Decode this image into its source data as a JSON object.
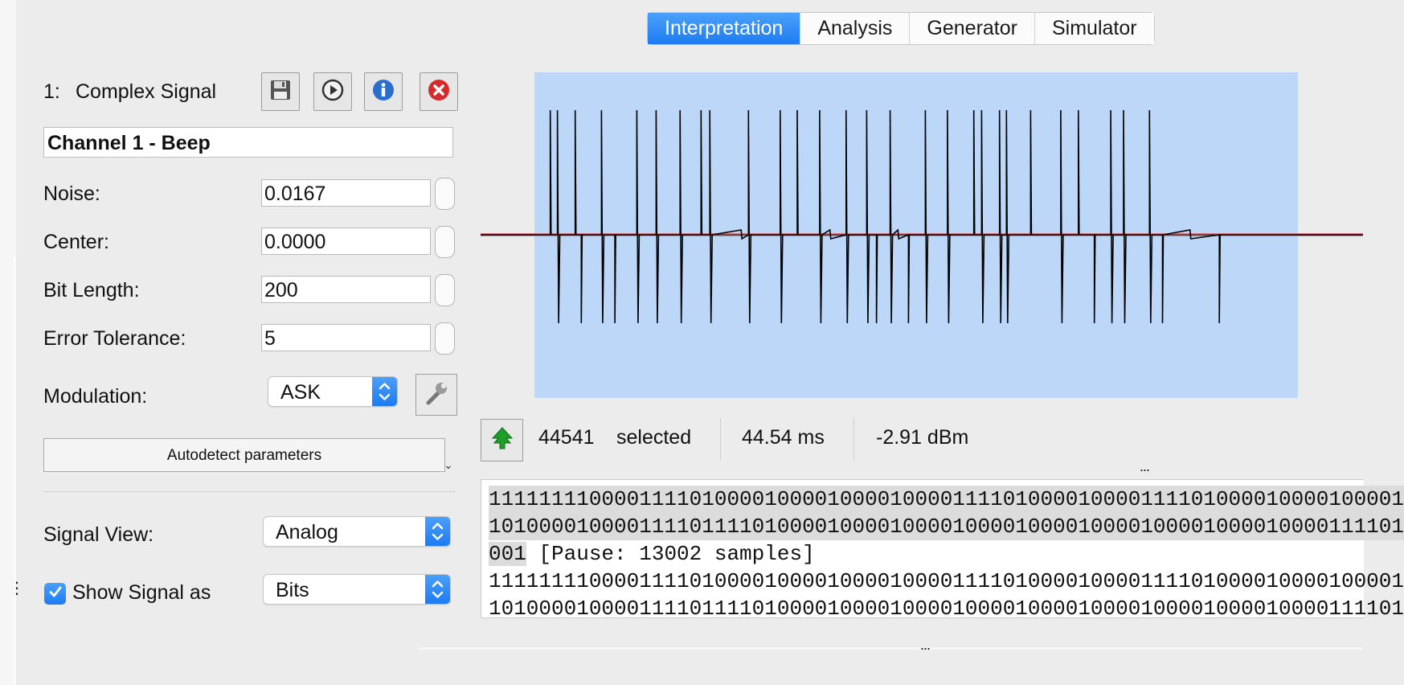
{
  "tabs": [
    {
      "label": "Interpretation",
      "active": true
    },
    {
      "label": "Analysis",
      "active": false
    },
    {
      "label": "Generator",
      "active": false
    },
    {
      "label": "Simulator",
      "active": false
    }
  ],
  "signal": {
    "number": "1:",
    "name": "Complex Signal",
    "channel_name": "Channel 1 - Beep"
  },
  "toolbar_icons": [
    "save-icon",
    "play-icon",
    "info-icon",
    "close-icon"
  ],
  "params": {
    "noise_label": "Noise:",
    "noise_value": "0.0167",
    "center_label": "Center:",
    "center_value": "0.0000",
    "bit_length_label": "Bit Length:",
    "bit_length_value": "200",
    "error_tolerance_label": "Error Tolerance:",
    "error_tolerance_value": "5",
    "modulation_label": "Modulation:",
    "modulation_value": "ASK"
  },
  "autodetect_label": "Autodetect parameters",
  "view": {
    "signal_view_label": "Signal View:",
    "signal_view_value": "Analog",
    "show_signal_label": "Show Signal as",
    "show_signal_value": "Bits",
    "show_signal_checked": true
  },
  "status": {
    "selected_count": "44541",
    "selected_label": "selected",
    "duration": "44.54 ms",
    "power": "-2.91 dBm"
  },
  "bits": {
    "line1": "1111111100001111010000100001000010000111101000010000111101000010000100001",
    "line2": "1010000100001111011110100001000010000100001000010000100001000010000111101",
    "line3_sel": "001",
    "line3_rest": " [Pause: 13002 samples]",
    "line4": "1111111100001111010000100001000010000111101000010000111101000010000100001",
    "line5": "1010000100001111011110100001000010000100001000010000100001000010000111101"
  },
  "splitter_handle": "...",
  "colors": {
    "accent": "#1d7cf2",
    "graph_bg": "#bcd7f8",
    "noise_line": "#e07f8a"
  }
}
